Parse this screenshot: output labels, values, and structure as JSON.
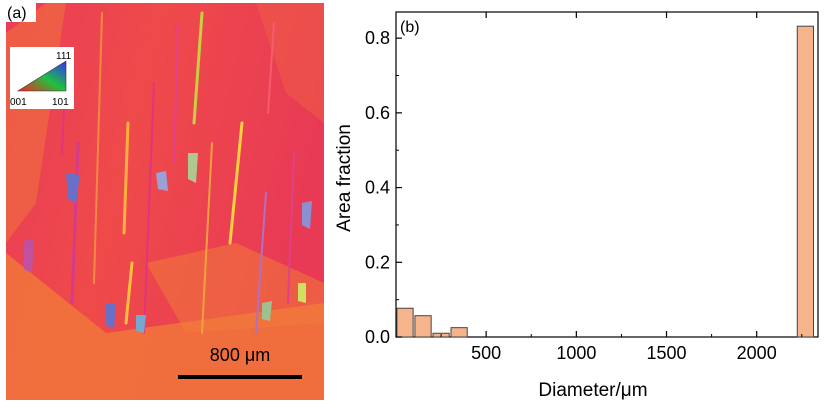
{
  "panel_a": {
    "label": "(a)",
    "legend": {
      "corner_top": "111",
      "corner_left": "001",
      "corner_right": "101"
    },
    "scale_bar": {
      "label": "800 μm"
    },
    "colors": {
      "base": "#ea3e52",
      "orange": "#f1733c",
      "magenta": "#e03580"
    }
  },
  "chart_data": {
    "type": "bar",
    "panel_label": "(b)",
    "xlabel": "Diameter/μm",
    "ylabel": "Area fraction",
    "xlim": [
      0,
      2340
    ],
    "ylim": [
      0,
      0.87
    ],
    "xticks": [
      500,
      1000,
      1500,
      2000
    ],
    "yticks": [
      0.0,
      0.2,
      0.4,
      0.6,
      0.8
    ],
    "ytick_labels": [
      "0.0",
      "0.2",
      "0.4",
      "0.6",
      "0.8"
    ],
    "bar_width": 90,
    "bars": [
      {
        "x": 50,
        "value": 0.077
      },
      {
        "x": 150,
        "value": 0.057
      },
      {
        "x": 250,
        "value": 0.01
      },
      {
        "x": 350,
        "value": 0.025
      },
      {
        "x": 2270,
        "value": 0.832
      }
    ],
    "bar_color": "#f6b48d",
    "grid": false
  }
}
